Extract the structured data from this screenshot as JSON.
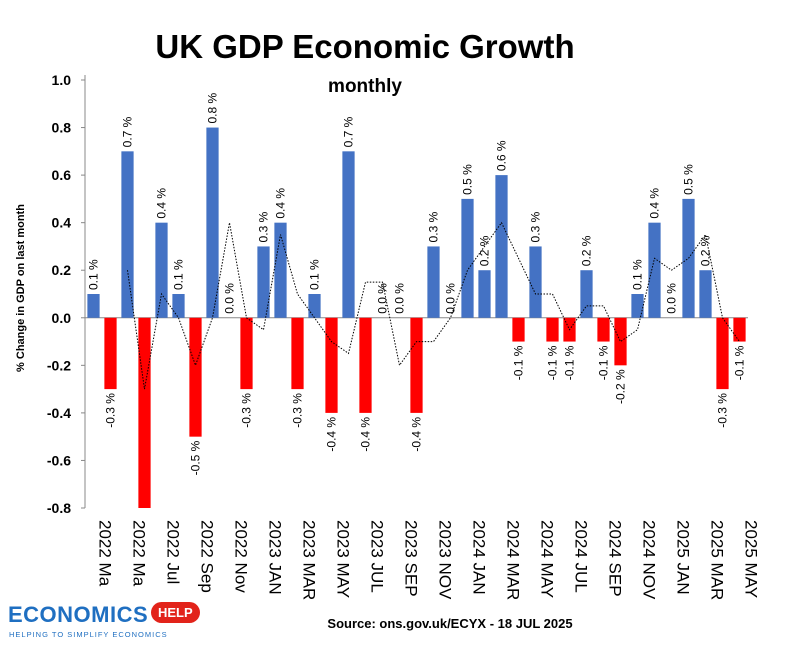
{
  "chart_data": {
    "type": "bar",
    "title": "UK GDP Economic Growth",
    "subtitle": "monthly",
    "ylabel": "% Change in GDP on last month",
    "xlabel": "",
    "ylim": [
      -0.8,
      1.0
    ],
    "yticks": [
      "1.0",
      "0.8",
      "0.6",
      "0.4",
      "0.2",
      "0.0",
      "-0.2",
      "-0.4",
      "-0.6",
      "-0.8"
    ],
    "xtick_labels": [
      "2022 Ma",
      "2022 Ma",
      "2022 Jul",
      "2022 Sep",
      "2022 Nov",
      "2023 JAN",
      "2023 MAR",
      "2023 MAY",
      "2023 JUL",
      "2023 SEP",
      "2023 NOV",
      "2024 JAN",
      "2024 MAR",
      "2024 MAY",
      "2024 JUL",
      "2024 SEP",
      "2024 NOV",
      "2025 JAN",
      "2025 MAR",
      "2025 MAY"
    ],
    "values": [
      0.1,
      -0.3,
      0.7,
      -0.8,
      0.4,
      0.1,
      -0.5,
      0.8,
      0.0,
      -0.3,
      0.3,
      0.4,
      -0.3,
      0.1,
      -0.4,
      0.7,
      -0.4,
      0.0,
      0.0,
      -0.4,
      0.3,
      0.0,
      0.5,
      0.2,
      0.6,
      -0.1,
      0.3,
      -0.1,
      -0.1,
      0.2,
      -0.1,
      -0.2,
      0.1,
      0.4,
      0.0,
      0.5,
      0.2,
      -0.3,
      -0.1
    ],
    "data_labels": [
      "0.1 %",
      "-0.3 %",
      "0.7 %",
      "",
      "0.4 %",
      "0.1 %",
      "-0.5 %",
      "0.8 %",
      "0.0 %",
      "-0.3 %",
      "0.3 %",
      "0.4 %",
      "-0.3 %",
      "0.1 %",
      "-0.4 %",
      "0.7 %",
      "-0.4 %",
      "0.0 %",
      "0.0 %",
      "-0.4 %",
      "0.3 %",
      "0.0 %",
      "0.5 %",
      "0.2 %",
      "0.6 %",
      "-0.1 %",
      "0.3 %",
      "-0.1 %",
      "-0.1 %",
      "0.2 %",
      "-0.1 %",
      "-0.2 %",
      "0.1 %",
      "0.4 %",
      "0.0 %",
      "0.5 %",
      "0.2 %",
      "-0.3 %",
      "-0.1 %"
    ],
    "trend_series": {
      "name": "3-month average",
      "values": [
        null,
        null,
        0.2,
        -0.3,
        0.1,
        0.0,
        -0.2,
        0.0,
        0.4,
        0.0,
        -0.05,
        0.35,
        0.1,
        0.0,
        -0.1,
        -0.15,
        0.15,
        0.15,
        -0.2,
        -0.1,
        -0.1,
        0.0,
        0.2,
        0.3,
        0.4,
        0.25,
        0.1,
        0.1,
        -0.05,
        0.05,
        0.05,
        -0.1,
        -0.05,
        0.25,
        0.2,
        0.25,
        0.35,
        0.0,
        -0.1
      ]
    },
    "colors": {
      "positive": "#4472c4",
      "negative": "#ff0000",
      "trend": "#000000"
    },
    "source": "Source: ons.gov.uk/ECYX - 18 JUL 2025"
  },
  "logo": {
    "word": "ECONOMICS",
    "badge": "HELP",
    "tagline": "HELPING TO SIMPLIFY ECONOMICS"
  }
}
